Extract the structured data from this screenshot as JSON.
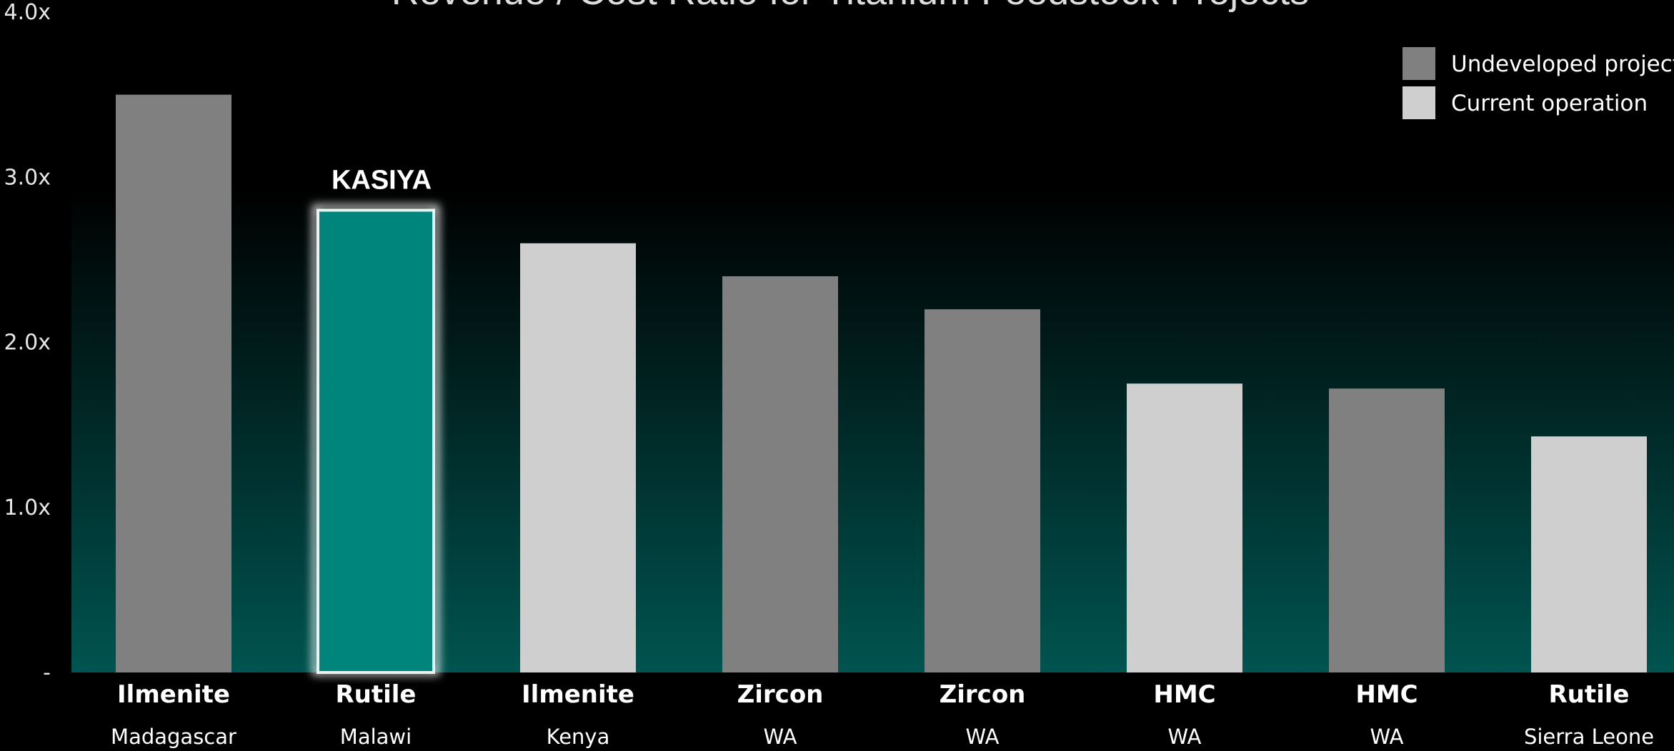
{
  "chart_data": {
    "type": "bar",
    "title": "Revenue / Cost Ratio for Titanium Feedstock Projects",
    "categories": [
      {
        "mineral": "Ilmenite",
        "location": "Madagascar"
      },
      {
        "mineral": "Rutile",
        "location": "Malawi"
      },
      {
        "mineral": "Ilmenite",
        "location": "Kenya"
      },
      {
        "mineral": "Zircon",
        "location": "WA"
      },
      {
        "mineral": "Zircon",
        "location": "WA"
      },
      {
        "mineral": "HMC",
        "location": "WA"
      },
      {
        "mineral": "HMC",
        "location": "WA"
      },
      {
        "mineral": "Rutile",
        "location": "Sierra Leone"
      }
    ],
    "values": [
      3.5,
      2.8,
      2.6,
      2.4,
      2.2,
      1.75,
      1.72,
      1.43
    ],
    "bar_types": [
      "undeveloped",
      "highlight",
      "current",
      "undeveloped",
      "undeveloped",
      "current",
      "undeveloped",
      "current"
    ],
    "ylim": [
      0,
      4
    ],
    "y_ticks": [
      {
        "value": 0,
        "label": "-"
      },
      {
        "value": 1,
        "label": "1.0x"
      },
      {
        "value": 2,
        "label": "2.0x"
      },
      {
        "value": 3,
        "label": "3.0x"
      },
      {
        "value": 4,
        "label": "4.0x"
      }
    ],
    "annotation": {
      "index": 1,
      "text": "KASIYA"
    },
    "legend": {
      "placement": "top-right",
      "items": [
        {
          "label": "Undeveloped project",
          "color": "#808080"
        },
        {
          "label": "Current operation",
          "color": "#d0cfcf"
        }
      ]
    },
    "colors": {
      "undeveloped": "#808080",
      "current": "#d0cfcf",
      "highlight": "#00857c",
      "background_top": "#000000",
      "background_bottom": "#005450"
    },
    "grid": false
  }
}
